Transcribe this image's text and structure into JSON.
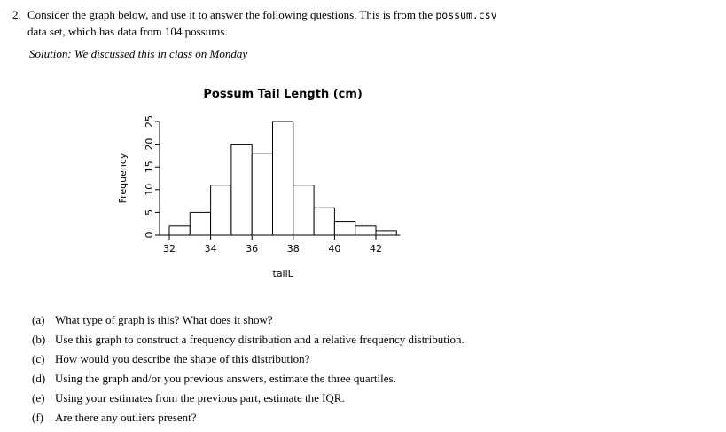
{
  "question": {
    "number": "2.",
    "intro_part1": "Consider the graph below, and use it to answer the following questions.  This is from the ",
    "intro_code": "possum.csv",
    "intro_part2": "data set, which has data from 104 possums.",
    "solution_note": "Solution: We discussed this in class on Monday"
  },
  "chart_data": {
    "type": "bar",
    "subtype": "histogram",
    "title": "Possum Tail Length (cm)",
    "xlabel": "tailL",
    "ylabel": "Frequency",
    "bin_start": 32,
    "bin_width": 1,
    "categories": [
      "32-33",
      "33-34",
      "34-35",
      "35-36",
      "36-37",
      "37-38",
      "38-39",
      "39-40",
      "40-41",
      "41-42",
      "42-43"
    ],
    "values": [
      2,
      5,
      11,
      20,
      18,
      25,
      11,
      6,
      3,
      2,
      1
    ],
    "total_count": 104,
    "x_ticks": [
      32,
      34,
      36,
      38,
      40,
      42
    ],
    "y_ticks": [
      0,
      5,
      10,
      15,
      20,
      25
    ],
    "xlim": [
      32,
      43
    ],
    "ylim": [
      0,
      25
    ],
    "grid": false,
    "legend": "none",
    "bar_fill": "#ffffff",
    "bar_stroke": "#000000"
  },
  "subquestions": [
    {
      "label": "(a)",
      "text": "What type of graph is this?  What does it show?"
    },
    {
      "label": "(b)",
      "text": "Use this graph to construct a frequency distribution and a relative frequency distribution."
    },
    {
      "label": "(c)",
      "text": "How would you describe the shape of this distribution?"
    },
    {
      "label": "(d)",
      "text": "Using the graph and/or you previous answers, estimate the three quartiles."
    },
    {
      "label": "(e)",
      "text": "Using your estimates from the previous part, estimate the IQR."
    },
    {
      "label": "(f)",
      "text": "Are there any outliers present?"
    }
  ]
}
